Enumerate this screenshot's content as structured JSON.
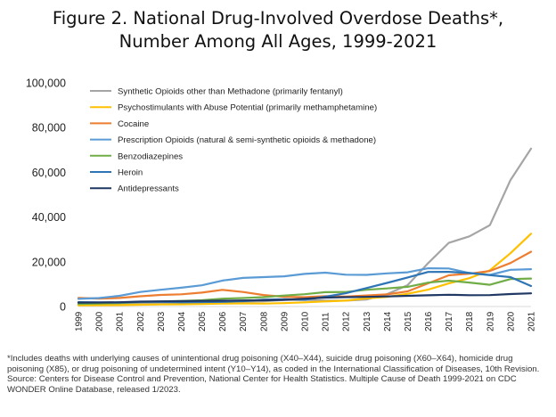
{
  "title_line1": "Figure 2. National Drug-Involved Overdose Deaths*,",
  "title_line2": "Number Among All Ages, 1999-2021",
  "chart_data": {
    "type": "line",
    "x": [
      1999,
      2000,
      2001,
      2002,
      2003,
      2004,
      2005,
      2006,
      2007,
      2008,
      2009,
      2010,
      2011,
      2012,
      2013,
      2014,
      2015,
      2016,
      2017,
      2018,
      2019,
      2020,
      2021
    ],
    "ylim": [
      0,
      100000
    ],
    "yticks": [
      0,
      20000,
      40000,
      60000,
      80000,
      100000
    ],
    "ytick_labels": [
      "0",
      "20,000",
      "40,000",
      "60,000",
      "80,000",
      "100,000"
    ],
    "grid": false,
    "legend_position": "top-left",
    "series": [
      {
        "name": "Synthetic Opioids other than Methadone (primarily fentanyl)",
        "color": "#a5a5a5",
        "values": [
          730,
          782,
          957,
          1295,
          1400,
          1664,
          1742,
          2707,
          2213,
          2306,
          2946,
          3007,
          2666,
          2628,
          3105,
          5544,
          9580,
          19413,
          28466,
          31335,
          36359,
          56516,
          70601
        ]
      },
      {
        "name": "Psychostimulants with Abuse Potential (primarily methamphetamine)",
        "color": "#ffc000",
        "values": [
          547,
          578,
          650,
          800,
          900,
          1000,
          1100,
          1300,
          1400,
          1300,
          1500,
          1854,
          2266,
          2635,
          3627,
          4298,
          5716,
          7542,
          10333,
          12676,
          16167,
          23837,
          32537
        ]
      },
      {
        "name": "Cocaine",
        "color": "#ed7d31",
        "values": [
          3822,
          3544,
          3833,
          4599,
          5199,
          5443,
          6208,
          7448,
          6512,
          5129,
          4350,
          4183,
          4681,
          4404,
          4944,
          5415,
          6784,
          10375,
          13942,
          14666,
          15883,
          19447,
          24486
        ]
      },
      {
        "name": "Prescription Opioids (natural & semi-synthetic opioids & methadone)",
        "color": "#5b9bd5",
        "values": [
          3442,
          3785,
          4770,
          6484,
          7500,
          8400,
          9500,
          11589,
          12796,
          13149,
          13523,
          14583,
          15140,
          14240,
          14145,
          14838,
          15281,
          17087,
          17029,
          14975,
          14139,
          16416,
          16706
        ]
      },
      {
        "name": "Benzodiazepines",
        "color": "#70ad47",
        "values": [
          1135,
          1298,
          1594,
          2000,
          2248,
          2500,
          2800,
          3496,
          3800,
          4200,
          4900,
          5500,
          6400,
          6500,
          7500,
          8100,
          8791,
          10684,
          11537,
          10724,
          9711,
          12290,
          12499
        ]
      },
      {
        "name": "Heroin",
        "color": "#2e75b6",
        "values": [
          1960,
          1842,
          1779,
          2089,
          2080,
          1878,
          2009,
          2088,
          2399,
          3041,
          3278,
          3036,
          4397,
          5925,
          8257,
          10574,
          12989,
          15469,
          15482,
          14996,
          14019,
          13165,
          9173
        ]
      },
      {
        "name": "Antidepressants",
        "color": "#203864",
        "values": [
          1749,
          1800,
          1900,
          2200,
          2300,
          2400,
          2500,
          2600,
          2700,
          2800,
          3000,
          3500,
          4000,
          4200,
          4300,
          4500,
          4800,
          5000,
          5269,
          5064,
          5100,
          5597,
          5900
        ]
      }
    ]
  },
  "footnote": {
    "line1": "*Includes deaths with underlying causes of unintentional drug poisoning (X40–X44), suicide drug poisoning (X60–X64), homicide drug",
    "line2": "poisoning (X85), or drug poisoning of undetermined intent (Y10–Y14), as coded in the International Classification of Diseases, 10th Revision.",
    "line3": "Source: Centers for Disease Control and Prevention, National Center for Health Statistics. Multiple Cause of Death 1999-2021 on CDC",
    "line4": "WONDER Online Database, released 1/2023."
  }
}
